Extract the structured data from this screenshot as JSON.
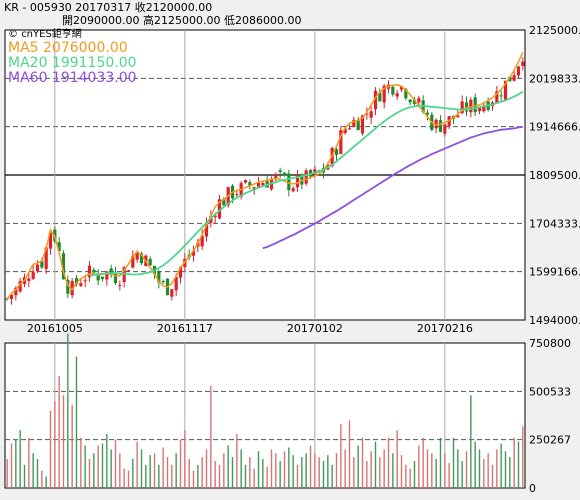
{
  "header": {
    "line1": "KR - 005930   20170317   收2120000.00",
    "line2": "開2090000.00   高2125000.00   低2086000.00"
  },
  "legend": {
    "logo": "cnYES鉅亨網",
    "ma5": "MA5 2076000.00",
    "ma20": "MA20 1991150.00",
    "ma60": "MA60 1914033.00"
  },
  "colors": {
    "up": "#e0202a",
    "down": "#1f8a2a",
    "ma5": "#f39a1e",
    "ma20": "#4fd68e",
    "ma60": "#8c4fe0",
    "volume_up": "#d97373",
    "volume_down": "#3f9a5a"
  },
  "chart_data": [
    {
      "type": "candlestick",
      "title": "",
      "y_ticks": [
        "2125000.0",
        "2019833.3",
        "1914666.6",
        "1809500.0",
        "1704333.3",
        "1599166.6",
        "1494000.0"
      ],
      "ylim": [
        1494000,
        2125000
      ],
      "x_tick_labels": [
        "20161005",
        "20161117",
        "20170102",
        "20170216"
      ],
      "x_tick_index": [
        11,
        41,
        71,
        101
      ],
      "grid": true,
      "count": 120,
      "series": [
        {
          "name": "MA5 2076000.00",
          "values": [
            1540000,
            1552000,
            1560000,
            1572000,
            1580000,
            1598000,
            1615000,
            1618000,
            1622000,
            1650000,
            1690000,
            1676000,
            1640000,
            1598000,
            1570000,
            1560000,
            1575000,
            1584000,
            1590000,
            1594000,
            1595000,
            1592000,
            1593000,
            1596000,
            1594000,
            1590000,
            1590000,
            1602000,
            1616000,
            1632000,
            1642000,
            1636000,
            1622000,
            1608000,
            1595000,
            1578000,
            1568000,
            1566000,
            1574000,
            1590000,
            1608000,
            1620000,
            1632000,
            1645000,
            1660000,
            1680000,
            1700000,
            1720000,
            1740000,
            1750000,
            1756000,
            1764000,
            1772000,
            1776000,
            1778000,
            1782000,
            1786000,
            1790000,
            1794000,
            1796000,
            1798000,
            1800000,
            1802000,
            1800000,
            1796000,
            1792000,
            1790000,
            1792000,
            1798000,
            1800000,
            1804000,
            1808000,
            1812000,
            1820000,
            1834000,
            1852000,
            1872000,
            1894000,
            1912000,
            1922000,
            1926000,
            1928000,
            1934000,
            1946000,
            1962000,
            1978000,
            1990000,
            1998000,
            2002000,
            2005000,
            2006000,
            2002000,
            1994000,
            1984000,
            1972000,
            1960000,
            1948000,
            1936000,
            1924000,
            1918000,
            1920000,
            1924000,
            1928000,
            1934000,
            1942000,
            1950000,
            1956000,
            1958000,
            1960000,
            1962000,
            1966000,
            1972000,
            1978000,
            1986000,
            1996000,
            2008000,
            2022000,
            2038000,
            2056000,
            2076000
          ]
        },
        {
          "name": "MA20 1991150.00",
          "values": [
            null,
            null,
            null,
            null,
            null,
            null,
            null,
            null,
            null,
            null,
            null,
            null,
            null,
            null,
            null,
            null,
            null,
            null,
            null,
            1590000,
            1592000,
            1594000,
            1594000,
            1595000,
            1596000,
            1596000,
            1595000,
            1594000,
            1594000,
            1593000,
            1593000,
            1594000,
            1596000,
            1598000,
            1602000,
            1607000,
            1613000,
            1620000,
            1628000,
            1637000,
            1646000,
            1656000,
            1666000,
            1676000,
            1686000,
            1696000,
            1706000,
            1715000,
            1724000,
            1732000,
            1740000,
            1747000,
            1754000,
            1760000,
            1765000,
            1770000,
            1774000,
            1778000,
            1782000,
            1785000,
            1788000,
            1791000,
            1794000,
            1797000,
            1799000,
            1801000,
            1803000,
            1805000,
            1807000,
            1809000,
            1811000,
            1814000,
            1817000,
            1821000,
            1826000,
            1832000,
            1839000,
            1847000,
            1855000,
            1863000,
            1871000,
            1879000,
            1887000,
            1895000,
            1903000,
            1911000,
            1919000,
            1926000,
            1933000,
            1939000,
            1945000,
            1950000,
            1954000,
            1957000,
            1959000,
            1960000,
            1960000,
            1959000,
            1958000,
            1957000,
            1956000,
            1955000,
            1954000,
            1953000,
            1952000,
            1952000,
            1952000,
            1953000,
            1955000,
            1957000,
            1959000,
            1961000,
            1963000,
            1966000,
            1969000,
            1972000,
            1976000,
            1980000,
            1985000,
            1991000
          ]
        },
        {
          "name": "MA60 1914033.00",
          "values": [
            null,
            null,
            null,
            null,
            null,
            null,
            null,
            null,
            null,
            null,
            null,
            null,
            null,
            null,
            null,
            null,
            null,
            null,
            null,
            null,
            null,
            null,
            null,
            null,
            null,
            null,
            null,
            null,
            null,
            null,
            null,
            null,
            null,
            null,
            null,
            null,
            null,
            null,
            null,
            null,
            null,
            null,
            null,
            null,
            null,
            null,
            null,
            null,
            null,
            null,
            null,
            null,
            null,
            null,
            null,
            null,
            null,
            null,
            null,
            1650000,
            1653000,
            1657000,
            1661000,
            1666000,
            1670000,
            1675000,
            1679000,
            1684000,
            1689000,
            1694000,
            1699000,
            1704000,
            1709000,
            1715000,
            1720000,
            1726000,
            1731000,
            1737000,
            1743000,
            1749000,
            1755000,
            1761000,
            1767000,
            1773000,
            1779000,
            1785000,
            1791000,
            1797000,
            1803000,
            1809000,
            1815000,
            1820000,
            1826000,
            1831000,
            1836000,
            1841000,
            1846000,
            1850000,
            1855000,
            1859000,
            1863000,
            1867000,
            1871000,
            1875000,
            1879000,
            1883000,
            1887000,
            1891000,
            1894000,
            1897000,
            1900000,
            1902000,
            1904000,
            1906000,
            1908000,
            1909000,
            1910000,
            1911000,
            1913000,
            1914033
          ]
        }
      ]
    },
    {
      "type": "bar",
      "title": "",
      "y_ticks": [
        "750800",
        "500533",
        "250267",
        "0"
      ],
      "ylim": [
        0,
        750800
      ],
      "count": 120,
      "values": [
        150000,
        230000,
        250000,
        300000,
        120000,
        260000,
        180000,
        150000,
        90000,
        60000,
        400000,
        450000,
        580000,
        480000,
        800000,
        430000,
        680000,
        260000,
        220000,
        150000,
        180000,
        220000,
        230000,
        280000,
        200000,
        250000,
        180000,
        100000,
        90000,
        150000,
        240000,
        200000,
        120000,
        170000,
        180000,
        120000,
        210000,
        160000,
        120000,
        180000,
        250000,
        300000,
        150000,
        90000,
        120000,
        160000,
        200000,
        530000,
        140000,
        120000,
        180000,
        220000,
        160000,
        280000,
        200000,
        120000,
        160000,
        100000,
        190000,
        150000,
        110000,
        200000,
        180000,
        140000,
        190000,
        210000,
        170000,
        120000,
        160000,
        180000,
        220000,
        180000,
        160000,
        140000,
        170000,
        120000,
        180000,
        330000,
        200000,
        350000,
        160000,
        220000,
        260000,
        140000,
        190000,
        240000,
        160000,
        200000,
        260000,
        180000,
        300000,
        170000,
        120000,
        100000,
        140000,
        220000,
        260000,
        200000,
        180000,
        150000,
        260000,
        180000,
        130000,
        260000,
        200000,
        140000,
        190000,
        480000,
        240000,
        200000,
        150000,
        180000,
        120000,
        200000,
        230000,
        190000,
        160000,
        260000,
        240000,
        320000
      ]
    }
  ]
}
